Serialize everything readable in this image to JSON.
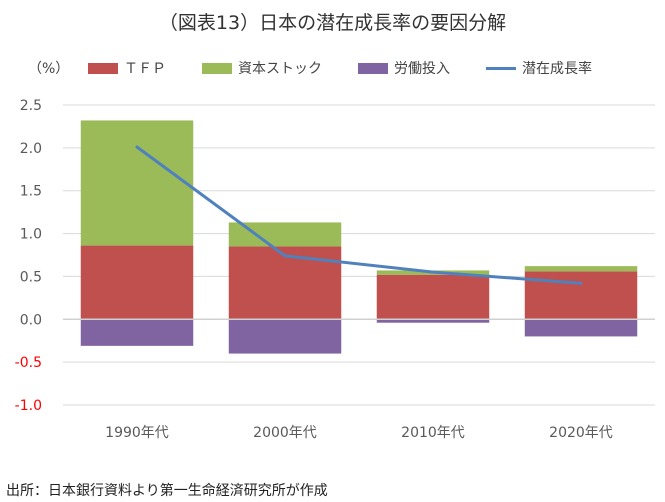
{
  "title": "（図表13）日本の潜在成長率の要因分解",
  "source": "出所：日本銀行資料より第一生命経済研究所が作成",
  "chart_data": {
    "type": "bar",
    "stacked": true,
    "title": "（図表13）日本の潜在成長率の要因分解",
    "ylabel": "（%）",
    "ylim": [
      -1.0,
      2.5
    ],
    "yticks": [
      "2.5",
      "2.0",
      "1.5",
      "1.0",
      "0.5",
      "0.0",
      "-0.5",
      "-1.0"
    ],
    "ytick_values": [
      2.5,
      2.0,
      1.5,
      1.0,
      0.5,
      0.0,
      -0.5,
      -1.0
    ],
    "negative_tick_color": "#ff0000",
    "grid": true,
    "legend_placement": "top",
    "categories": [
      "1990年代",
      "2000年代",
      "2010年代",
      "2020年代"
    ],
    "series": [
      {
        "name": "ＴＦＰ",
        "kind": "bar",
        "color": "#c0504d",
        "values": [
          0.86,
          0.85,
          0.52,
          0.56
        ]
      },
      {
        "name": "資本ストック",
        "kind": "bar",
        "color": "#9bbb59",
        "values": [
          1.46,
          0.28,
          0.05,
          0.06
        ]
      },
      {
        "name": "労働投入",
        "kind": "bar",
        "color": "#8064a2",
        "values": [
          -0.31,
          -0.4,
          -0.04,
          -0.2
        ]
      },
      {
        "name": "潜在成長率",
        "kind": "line",
        "color": "#4f81bd",
        "values": [
          2.01,
          0.74,
          0.55,
          0.42
        ]
      }
    ]
  }
}
